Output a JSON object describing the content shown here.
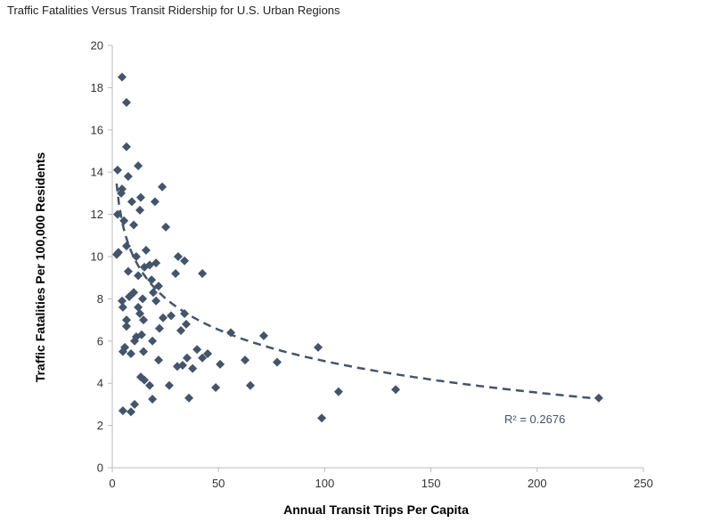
{
  "chart_data": {
    "type": "scatter",
    "title": "Traffic Fatalities Versus Transit Ridership for U.S. Urban Regions",
    "xlabel": "Annual Transit Trips Per Capita",
    "ylabel": "Traffic Fatalities Per 100,000 Residents",
    "xlim": [
      0,
      250
    ],
    "ylim": [
      0,
      20
    ],
    "xticks": [
      0,
      50,
      100,
      150,
      200,
      250
    ],
    "yticks": [
      0,
      2,
      4,
      6,
      8,
      10,
      12,
      14,
      16,
      18,
      20
    ],
    "grid": false,
    "marker_color": "#44546a",
    "points": [
      [
        4.6,
        18.5
      ],
      [
        6.7,
        17.3
      ],
      [
        6.7,
        15.2
      ],
      [
        2.5,
        14.1
      ],
      [
        12.2,
        14.3
      ],
      [
        7.5,
        13.8
      ],
      [
        4.6,
        13.2
      ],
      [
        4.2,
        13.0
      ],
      [
        23.5,
        13.3
      ],
      [
        9.2,
        12.6
      ],
      [
        13.4,
        12.8
      ],
      [
        20.1,
        12.6
      ],
      [
        13.0,
        12.2
      ],
      [
        2.5,
        12.0
      ],
      [
        5.5,
        11.7
      ],
      [
        10.1,
        11.5
      ],
      [
        25.2,
        11.4
      ],
      [
        2.1,
        10.1
      ],
      [
        2.9,
        10.2
      ],
      [
        6.7,
        10.5
      ],
      [
        11.3,
        10.0
      ],
      [
        15.9,
        10.3
      ],
      [
        31.0,
        10.0
      ],
      [
        34.0,
        9.8
      ],
      [
        7.5,
        9.3
      ],
      [
        12.2,
        9.1
      ],
      [
        15.1,
        9.5
      ],
      [
        17.6,
        9.6
      ],
      [
        20.6,
        9.7
      ],
      [
        18.5,
        8.9
      ],
      [
        29.8,
        9.2
      ],
      [
        42.4,
        9.2
      ],
      [
        21.8,
        8.6
      ],
      [
        10.1,
        8.3
      ],
      [
        8.0,
        8.1
      ],
      [
        14.3,
        8.0
      ],
      [
        19.3,
        8.3
      ],
      [
        20.6,
        7.9
      ],
      [
        4.6,
        7.9
      ],
      [
        5.0,
        7.6
      ],
      [
        12.2,
        7.6
      ],
      [
        13.0,
        7.3
      ],
      [
        23.9,
        7.1
      ],
      [
        27.7,
        7.2
      ],
      [
        34.0,
        7.3
      ],
      [
        34.8,
        6.8
      ],
      [
        6.7,
        7.0
      ],
      [
        6.7,
        6.7
      ],
      [
        14.7,
        7.0
      ],
      [
        22.2,
        6.6
      ],
      [
        32.3,
        6.5
      ],
      [
        11.3,
        6.2
      ],
      [
        13.8,
        6.3
      ],
      [
        10.5,
        6.0
      ],
      [
        18.9,
        6.0
      ],
      [
        5.9,
        5.7
      ],
      [
        5.0,
        5.5
      ],
      [
        8.8,
        5.4
      ],
      [
        14.7,
        5.5
      ],
      [
        21.8,
        5.1
      ],
      [
        30.6,
        4.8
      ],
      [
        33.1,
        4.85
      ],
      [
        35.2,
        5.2
      ],
      [
        37.8,
        4.7
      ],
      [
        39.9,
        5.6
      ],
      [
        42.4,
        5.2
      ],
      [
        44.9,
        5.4
      ],
      [
        50.8,
        4.9
      ],
      [
        13.4,
        4.3
      ],
      [
        15.1,
        4.15
      ],
      [
        17.6,
        3.9
      ],
      [
        26.8,
        3.9
      ],
      [
        48.7,
        3.8
      ],
      [
        18.9,
        3.25
      ],
      [
        36.1,
        3.3
      ],
      [
        5.0,
        2.7
      ],
      [
        8.8,
        2.65
      ],
      [
        10.5,
        3.0
      ],
      [
        55.8,
        6.4
      ],
      [
        62.5,
        5.1
      ],
      [
        65.0,
        3.9
      ],
      [
        71.3,
        6.25
      ],
      [
        77.6,
        5.0
      ],
      [
        96.9,
        5.7
      ],
      [
        98.6,
        2.35
      ],
      [
        106.5,
        3.6
      ],
      [
        133.4,
        3.7
      ],
      [
        229.0,
        3.3
      ]
    ],
    "trendline": {
      "type": "logarithmic",
      "a": 14.95,
      "b": -2.15,
      "x_range": [
        2,
        228
      ],
      "style": "dashed",
      "label": "R² = 0.2676"
    }
  }
}
